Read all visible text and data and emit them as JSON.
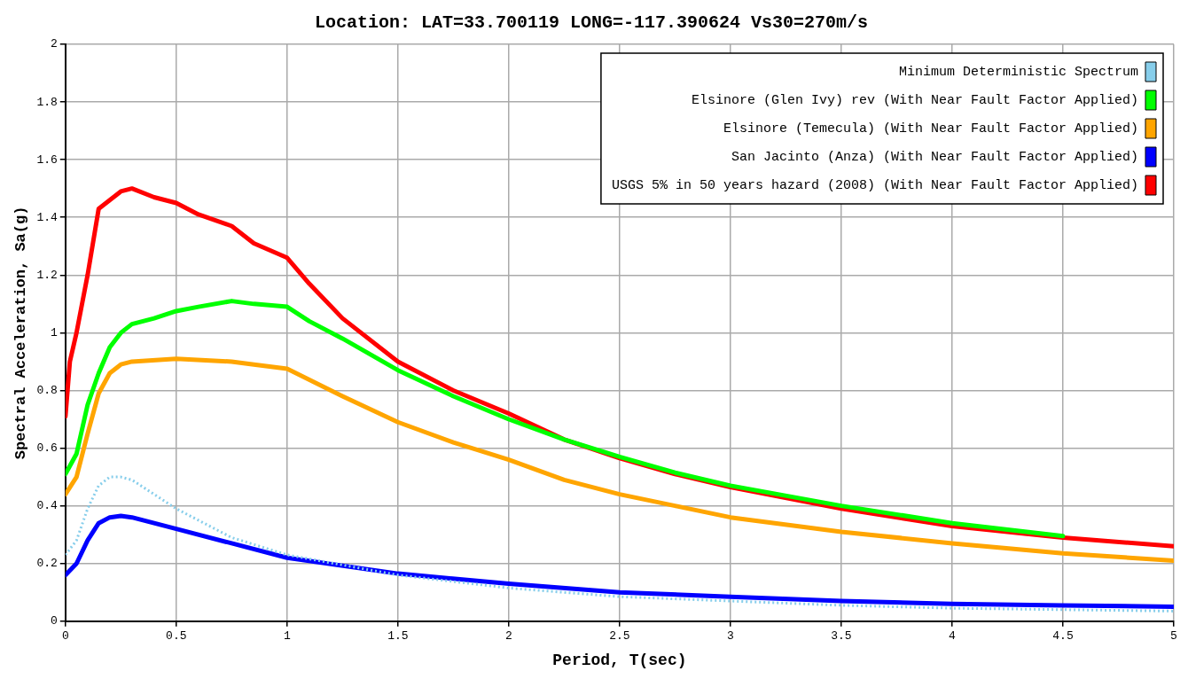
{
  "chart_data": {
    "type": "line",
    "title": "Location: LAT=33.700119 LONG=-117.390624 Vs30=270m/s",
    "xlabel": "Period, T(sec)",
    "ylabel": "Spectral Acceleration, Sa(g)",
    "xlim": [
      0,
      5
    ],
    "ylim": [
      0,
      2
    ],
    "xticks": [
      0,
      0.5,
      1,
      1.5,
      2,
      2.5,
      3,
      3.5,
      4,
      4.5,
      5
    ],
    "yticks": [
      0,
      0.2,
      0.4,
      0.6,
      0.8,
      1,
      1.2,
      1.4,
      1.6,
      1.8,
      2
    ],
    "grid": true,
    "legend": "top right",
    "marker": "none",
    "series": [
      {
        "name": "Minimum Deterministic Spectrum",
        "color": "#87ceeb",
        "line_style": "dotted",
        "x": [
          0,
          0.05,
          0.1,
          0.15,
          0.2,
          0.25,
          0.3,
          0.4,
          0.5,
          0.75,
          1,
          1.5,
          2,
          2.5,
          3,
          3.5,
          4,
          4.5,
          5
        ],
        "values": [
          0.23,
          0.28,
          0.39,
          0.47,
          0.5,
          0.5,
          0.49,
          0.44,
          0.39,
          0.29,
          0.23,
          0.16,
          0.115,
          0.085,
          0.07,
          0.055,
          0.045,
          0.04,
          0.035
        ]
      },
      {
        "name": "Elsinore (Glen Ivy) rev (With Near Fault Factor Applied)",
        "color": "#00ff00",
        "x": [
          0,
          0.05,
          0.1,
          0.15,
          0.2,
          0.25,
          0.3,
          0.4,
          0.5,
          0.6,
          0.75,
          0.85,
          1,
          1.1,
          1.25,
          1.5,
          1.75,
          2,
          2.25,
          2.5,
          2.75,
          3,
          3.5,
          4,
          4.5
        ],
        "values": [
          0.51,
          0.58,
          0.75,
          0.86,
          0.95,
          1,
          1.03,
          1.05,
          1.075,
          1.09,
          1.11,
          1.1,
          1.09,
          1.04,
          0.98,
          0.87,
          0.78,
          0.7,
          0.63,
          0.57,
          0.515,
          0.47,
          0.4,
          0.34,
          0.295
        ]
      },
      {
        "name": "Elsinore (Temecula) (With Near Fault Factor Applied)",
        "color": "#ffa500",
        "x": [
          0,
          0.05,
          0.1,
          0.15,
          0.2,
          0.25,
          0.3,
          0.5,
          0.75,
          0.85,
          1,
          1.25,
          1.5,
          1.75,
          2,
          2.25,
          2.5,
          2.75,
          3,
          3.5,
          4,
          4.5,
          5
        ],
        "values": [
          0.44,
          0.5,
          0.65,
          0.79,
          0.86,
          0.89,
          0.9,
          0.91,
          0.9,
          0.89,
          0.875,
          0.78,
          0.69,
          0.62,
          0.56,
          0.49,
          0.44,
          0.4,
          0.36,
          0.31,
          0.27,
          0.235,
          0.21
        ]
      },
      {
        "name": "San Jacinto (Anza) (With Near Fault Factor Applied)",
        "color": "#0000ff",
        "x": [
          0,
          0.05,
          0.1,
          0.15,
          0.2,
          0.25,
          0.3,
          0.5,
          0.75,
          1,
          1.5,
          2,
          2.5,
          3,
          3.5,
          4,
          4.5,
          5
        ],
        "values": [
          0.16,
          0.2,
          0.28,
          0.34,
          0.36,
          0.365,
          0.36,
          0.32,
          0.27,
          0.22,
          0.165,
          0.13,
          0.1,
          0.085,
          0.07,
          0.06,
          0.055,
          0.05
        ]
      },
      {
        "name": "USGS 5% in 50 years hazard (2008) (With Near Fault Factor Applied)",
        "color": "#ff0000",
        "x": [
          0,
          0.02,
          0.05,
          0.1,
          0.15,
          0.2,
          0.25,
          0.3,
          0.4,
          0.5,
          0.6,
          0.75,
          0.85,
          1,
          1.1,
          1.25,
          1.5,
          1.75,
          2,
          2.25,
          2.5,
          2.75,
          3,
          3.5,
          4,
          4.5,
          5
        ],
        "values": [
          0.71,
          0.9,
          1,
          1.2,
          1.43,
          1.46,
          1.49,
          1.5,
          1.47,
          1.45,
          1.41,
          1.37,
          1.31,
          1.26,
          1.17,
          1.05,
          0.9,
          0.8,
          0.72,
          0.63,
          0.565,
          0.51,
          0.465,
          0.39,
          0.33,
          0.29,
          0.26
        ]
      }
    ]
  }
}
